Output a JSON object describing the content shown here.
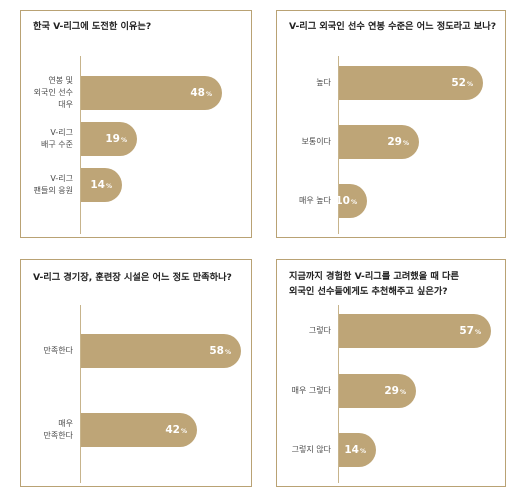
{
  "chart_data": [
    {
      "type": "bar",
      "orientation": "horizontal",
      "title": "한국 V-리그에 도전한 이유는?",
      "categories": [
        [
          "연봉 및",
          "외국인 선수",
          "대우"
        ],
        [
          "V-리그",
          "배구 수준"
        ],
        [
          "V-리그",
          "팬들의 응원"
        ]
      ],
      "values": [
        48,
        19,
        14
      ],
      "value_suffix": "%",
      "xlim": [
        0,
        60
      ]
    },
    {
      "type": "bar",
      "orientation": "horizontal",
      "title": "V-리그 외국인 선수 연봉 수준은 어느 정도라고 보나?",
      "categories": [
        [
          "높다"
        ],
        [
          "보통이다"
        ],
        [
          "매우 높다"
        ]
      ],
      "values": [
        52,
        29,
        10
      ],
      "value_suffix": "%",
      "xlim": [
        0,
        60
      ]
    },
    {
      "type": "bar",
      "orientation": "horizontal",
      "title": "V-리그 경기장, 훈련장 시설은 어느 정도 만족하나?",
      "categories": [
        [
          "만족한다"
        ],
        [
          "매우",
          "만족한다"
        ]
      ],
      "values": [
        58,
        42
      ],
      "value_suffix": "%",
      "xlim": [
        0,
        60
      ]
    },
    {
      "type": "bar",
      "orientation": "horizontal",
      "title": [
        "지금까지 경험한 V-리그를 고려했을 때 다른",
        "외국인 선수들에게도 추천해주고 싶은가?"
      ],
      "categories": [
        [
          "그렇다"
        ],
        [
          "매우 그렇다"
        ],
        [
          "그렇지 않다"
        ]
      ],
      "values": [
        57,
        29,
        14
      ],
      "value_suffix": "%",
      "xlim": [
        0,
        60
      ]
    }
  ],
  "colors": {
    "bar": "#bea577",
    "border": "#b9a274",
    "value_text": "#ffffff"
  }
}
